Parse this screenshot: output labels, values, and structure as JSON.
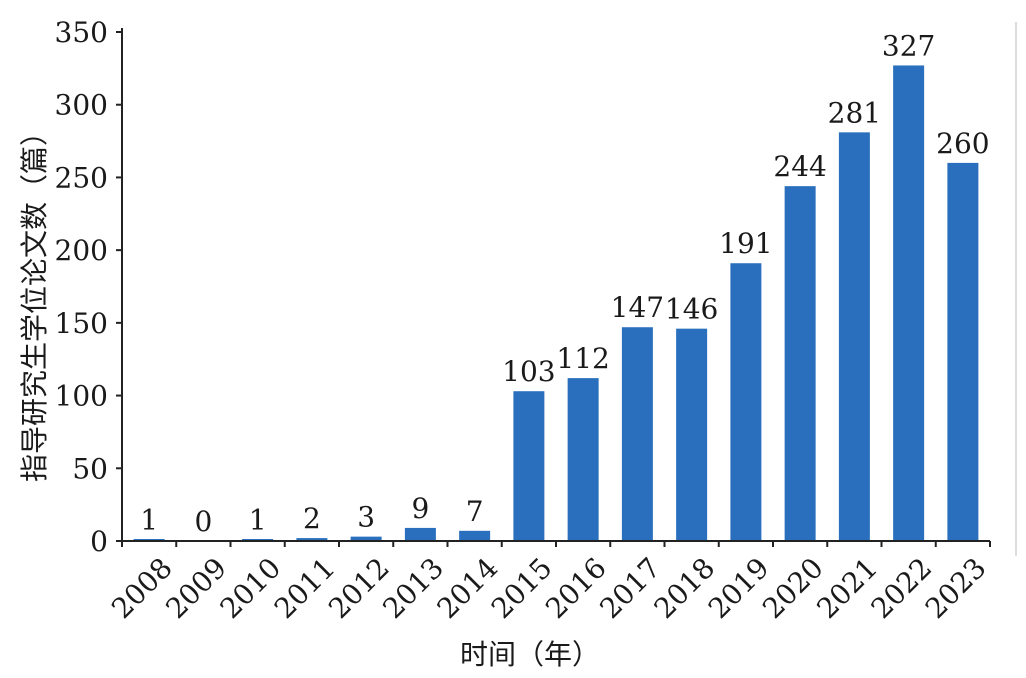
{
  "chart_data": {
    "type": "bar",
    "categories": [
      "2008",
      "2009",
      "2010",
      "2011",
      "2012",
      "2013",
      "2014",
      "2015",
      "2016",
      "2017",
      "2018",
      "2019",
      "2020",
      "2021",
      "2022",
      "2023"
    ],
    "values": [
      1,
      0,
      1,
      2,
      3,
      9,
      7,
      103,
      112,
      147,
      146,
      191,
      244,
      281,
      327,
      260
    ],
    "xlabel": "时间（年）",
    "ylabel": "指导研究生学位论文数（篇）",
    "ylim": [
      0,
      350
    ],
    "yticks": [
      0,
      50,
      100,
      150,
      200,
      250,
      300,
      350
    ],
    "bar_color": "#2a6fbd",
    "data_labels": true,
    "grid": false,
    "legend": "none"
  }
}
